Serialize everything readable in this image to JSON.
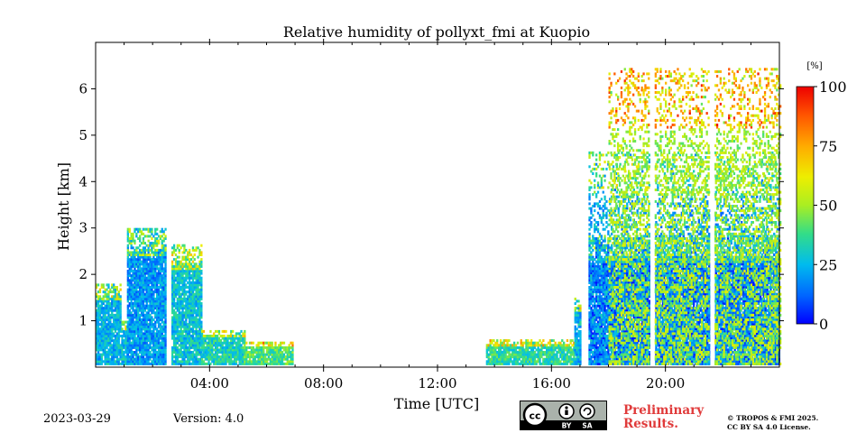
{
  "chart_data": {
    "type": "heatmap",
    "title": "Relative humidity of pollyxt_fmi at Kuopio",
    "xlabel": "Time [UTC]",
    "ylabel": "Height [km]",
    "xlim": [
      0,
      24
    ],
    "ylim": [
      0,
      7
    ],
    "x_ticks": [
      {
        "value": 4,
        "label": "04:00"
      },
      {
        "value": 8,
        "label": "08:00"
      },
      {
        "value": 12,
        "label": "12:00"
      },
      {
        "value": 16,
        "label": "16:00"
      },
      {
        "value": 20,
        "label": "20:00"
      }
    ],
    "y_ticks": [
      {
        "value": 1,
        "label": "1"
      },
      {
        "value": 2,
        "label": "2"
      },
      {
        "value": 3,
        "label": "3"
      },
      {
        "value": 4,
        "label": "4"
      },
      {
        "value": 5,
        "label": "5"
      },
      {
        "value": 6,
        "label": "6"
      }
    ],
    "colorbar": {
      "unit": "[%]",
      "range": [
        0,
        100
      ],
      "ticks": [
        {
          "value": 0,
          "label": "0"
        },
        {
          "value": 25,
          "label": "25"
        },
        {
          "value": 50,
          "label": "50"
        },
        {
          "value": 75,
          "label": "75"
        },
        {
          "value": 100,
          "label": "100"
        }
      ],
      "colormap": "jet"
    },
    "gaps_hours": [
      2.55,
      17.1,
      19.5,
      21.6
    ],
    "regions": [
      {
        "x": [
          0.0,
          0.9
        ],
        "top_km": 1.8,
        "rh": 25
      },
      {
        "x": [
          0.9,
          1.1
        ],
        "top_km": 1.0,
        "rh": 28
      },
      {
        "x": [
          1.1,
          2.5
        ],
        "top_km": 2.95,
        "rh": 20
      },
      {
        "x": [
          2.6,
          3.7
        ],
        "top_km": 2.6,
        "rh": 28
      },
      {
        "x": [
          3.7,
          5.2
        ],
        "top_km": 0.8,
        "rh": 32
      },
      {
        "x": [
          5.2,
          6.9
        ],
        "top_km": 0.5,
        "rh": 40
      },
      {
        "x": [
          13.7,
          16.8
        ],
        "top_km": 0.55,
        "rh": 35
      },
      {
        "x": [
          16.8,
          17.1
        ],
        "top_km": 1.5,
        "rh": 25
      },
      {
        "x": [
          17.3,
          24.0
        ],
        "top_km": 2.8,
        "rh": 12
      },
      {
        "x": [
          17.3,
          24.0
        ],
        "top_km": 4.6,
        "rh": 22
      },
      {
        "x": [
          18.0,
          24.0
        ],
        "top_km": 6.4,
        "rh": 50
      }
    ]
  },
  "footer": {
    "date": "2023-03-29",
    "version": "Version: 4.0",
    "license_badge": [
      "BY",
      "SA"
    ],
    "preliminary_line1": "Preliminary",
    "preliminary_line2": "Results.",
    "copyright_line1": "© TROPOS & FMI 2025.",
    "copyright_line2": "CC BY SA 4.0 License.",
    "colors": {
      "preliminary": "#e03a3a",
      "badge": "#aab2ab"
    }
  }
}
